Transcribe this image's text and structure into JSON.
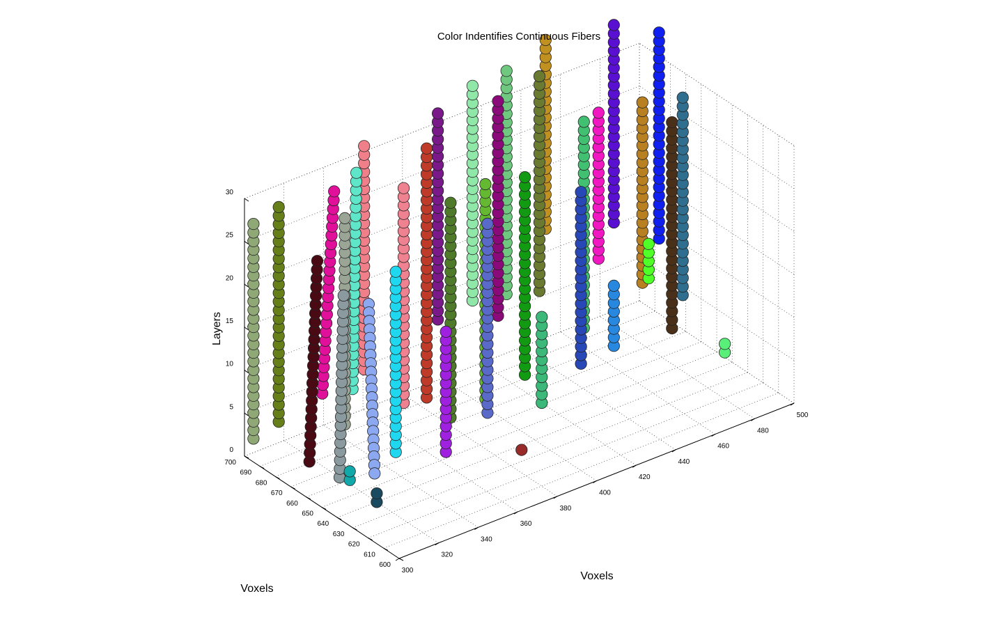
{
  "chart_data": {
    "type": "scatter",
    "subtype": "scatter3d",
    "title": "Color Indentifies Continuous Fibers",
    "xlabel": "Voxels",
    "ylabel": "Voxels",
    "zlabel": "Layers",
    "xlim": [
      300,
      500
    ],
    "ylim": [
      600,
      700
    ],
    "zlim": [
      0,
      30
    ],
    "x_ticks": [
      "300",
      "320",
      "340",
      "360",
      "380",
      "400",
      "420",
      "440",
      "460",
      "480",
      "500"
    ],
    "y_ticks": [
      "600",
      "610",
      "620",
      "630",
      "640",
      "650",
      "660",
      "670",
      "680",
      "690",
      "700"
    ],
    "z_ticks": [
      "0",
      "5",
      "10",
      "15",
      "20",
      "25",
      "30"
    ],
    "grid": true,
    "series": [
      {
        "color": "#8fa876",
        "x": [
          303,
          303
        ],
        "y": [
          698,
          698
        ],
        "z": [
          2,
          27
        ]
      },
      {
        "color": "#667f18",
        "x": [
          315,
          315
        ],
        "y": [
          697,
          697
        ],
        "z": [
          3,
          28
        ]
      },
      {
        "color": "#4a0a14",
        "x": [
          318,
          322
        ],
        "y": [
          681,
          681
        ],
        "z": [
          0,
          23
        ]
      },
      {
        "color": "#e0109a",
        "x": [
          330,
          336
        ],
        "y": [
          688,
          688
        ],
        "z": [
          6,
          29
        ]
      },
      {
        "color": "#8a9a9e",
        "x": [
          320,
          322
        ],
        "y": [
          664,
          664
        ],
        "z": [
          0,
          21
        ]
      },
      {
        "color": "#9aa596",
        "x": [
          343,
          343
        ],
        "y": [
          690,
          690
        ],
        "z": [
          1,
          25
        ]
      },
      {
        "color": "#5fe6c8",
        "x": [
          350,
          352
        ],
        "y": [
          694,
          694
        ],
        "z": [
          4,
          29
        ]
      },
      {
        "color": "#f07f8a",
        "x": [
          359,
          359
        ],
        "y": [
          698,
          698
        ],
        "z": [
          5,
          31
        ]
      },
      {
        "color": "#8ca8f0",
        "x": [
          333,
          330
        ],
        "y": [
          658,
          658
        ],
        "z": [
          0,
          20
        ]
      },
      {
        "color": "#ef8290",
        "x": [
          372,
          372
        ],
        "y": [
          689,
          689
        ],
        "z": [
          1,
          26
        ]
      },
      {
        "color": "#1fd8f0",
        "x": [
          350,
          350
        ],
        "y": [
          666,
          666
        ],
        "z": [
          0,
          21
        ]
      },
      {
        "color": "#c03a2a",
        "x": [
          386,
          386
        ],
        "y": [
          692,
          692
        ],
        "z": [
          0,
          29
        ]
      },
      {
        "color": "#7a1a8a",
        "x": [
          394,
          394
        ],
        "y": [
          695,
          695
        ],
        "z": [
          8,
          32
        ]
      },
      {
        "color": "#4e7a2a",
        "x": [
          384,
          384
        ],
        "y": [
          674,
          674
        ],
        "z": [
          0,
          25
        ]
      },
      {
        "color": "#a020e0",
        "x": [
          366,
          366
        ],
        "y": [
          654,
          654
        ],
        "z": [
          0,
          14
        ]
      },
      {
        "color": "#90e8a8",
        "x": [
          410,
          410
        ],
        "y": [
          693,
          693
        ],
        "z": [
          9,
          34
        ]
      },
      {
        "color": "#64b832",
        "x": [
          404,
          404
        ],
        "y": [
          677,
          677
        ],
        "z": [
          0,
          25
        ]
      },
      {
        "color": "#8a0a7a",
        "x": [
          419,
          419
        ],
        "y": [
          688,
          688
        ],
        "z": [
          7,
          32
        ]
      },
      {
        "color": "#5a6ac8",
        "x": [
          398,
          398
        ],
        "y": [
          668,
          668
        ],
        "z": [
          0,
          22
        ]
      },
      {
        "color": "#70c880",
        "x": [
          428,
          428
        ],
        "y": [
          694,
          694
        ],
        "z": [
          8,
          34
        ]
      },
      {
        "color": "#6a7a30",
        "x": [
          440,
          440
        ],
        "y": [
          688,
          688
        ],
        "z": [
          8,
          33
        ]
      },
      {
        "color": "#c09020",
        "x": [
          447,
          447
        ],
        "y": [
          693,
          693
        ],
        "z": [
          14,
          36
        ]
      },
      {
        "color": "#129a12",
        "x": [
          424,
          424
        ],
        "y": [
          677,
          677
        ],
        "z": [
          1,
          24
        ]
      },
      {
        "color": "#3cb878",
        "x": [
          420,
          420
        ],
        "y": [
          661,
          661
        ],
        "z": [
          0,
          10
        ]
      },
      {
        "color": "#2848b8",
        "x": [
          443,
          443
        ],
        "y": [
          665,
          665
        ],
        "z": [
          2,
          22
        ]
      },
      {
        "color": "#40c070",
        "x": [
          457,
          457
        ],
        "y": [
          681,
          681
        ],
        "z": [
          3,
          27
        ]
      },
      {
        "color": "#f018c0",
        "x": [
          466,
          466
        ],
        "y": [
          683,
          683
        ],
        "z": [
          10,
          27
        ]
      },
      {
        "color": "#5a10d0",
        "x": [
          480,
          480
        ],
        "y": [
          691,
          691
        ],
        "z": [
          12,
          35
        ]
      },
      {
        "color": "#2888e0",
        "x": [
          462,
          462
        ],
        "y": [
          668,
          668
        ],
        "z": [
          2,
          9
        ]
      },
      {
        "color": "#b88020",
        "x": [
          489,
          489
        ],
        "y": [
          684,
          684
        ],
        "z": [
          5,
          26
        ]
      },
      {
        "color": "#1020f0",
        "x": [
          499,
          499
        ],
        "y": [
          686,
          686
        ],
        "z": [
          9,
          33
        ]
      },
      {
        "color": "#4a3018",
        "x": [
          493,
          493
        ],
        "y": [
          670,
          670
        ],
        "z": [
          1,
          25
        ]
      },
      {
        "color": "#2f6e8e",
        "x": [
          500,
          500
        ],
        "y": [
          672,
          672
        ],
        "z": [
          4,
          27
        ]
      },
      {
        "color": "#50ff28",
        "x": [
          489,
          489
        ],
        "y": [
          680,
          680
        ],
        "z": [
          6,
          10
        ]
      },
      {
        "color": "#58f078",
        "x": [
          490,
          490
        ],
        "y": [
          632,
          632
        ],
        "z": [
          3,
          4
        ]
      },
      {
        "color": "#982a2a",
        "x": [
          391,
          391
        ],
        "y": [
          637,
          637
        ],
        "z": [
          0,
          0
        ]
      },
      {
        "color": "#1a4a60",
        "x": [
          320,
          320
        ],
        "y": [
          640,
          640
        ],
        "z": [
          0,
          1
        ]
      },
      {
        "color": "#10a8a8",
        "x": [
          322,
          322
        ],
        "y": [
          660,
          660
        ],
        "z": [
          0,
          1
        ]
      }
    ]
  }
}
